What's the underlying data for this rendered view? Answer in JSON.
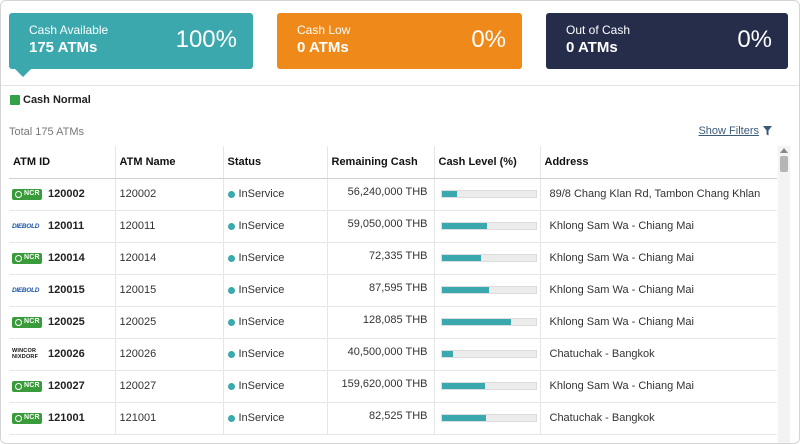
{
  "summary": {
    "available": {
      "label": "Cash Available",
      "count": "175 ATMs",
      "percent": "100%",
      "color": "#3aa8ad"
    },
    "low": {
      "label": "Cash Low",
      "count": "0 ATMs",
      "percent": "0%",
      "color": "#ef8a1a"
    },
    "out": {
      "label": "Out of Cash",
      "count": "0 ATMs",
      "percent": "0%",
      "color": "#252d4a"
    }
  },
  "legend": {
    "label": "Cash Normal",
    "color": "#35a04a"
  },
  "total_label": "Total 175 ATMs",
  "show_filters": "Show Filters",
  "table": {
    "headers": [
      "ATM ID",
      "ATM Name",
      "Status",
      "Remaining Cash",
      "Cash Level (%)",
      "Address"
    ],
    "rows": [
      {
        "logo": "NCR",
        "id": "120002",
        "name": "120002",
        "status": "InService",
        "cash": "56,240,000 THB",
        "level": 0.16,
        "address": "89/8 Chang Klan Rd, Tambon Chang Khlan"
      },
      {
        "logo": "DIEBOLD",
        "id": "120011",
        "name": "120011",
        "status": "InService",
        "cash": "59,050,000 THB",
        "level": 0.48,
        "address": "Khlong Sam Wa - Chiang Mai"
      },
      {
        "logo": "NCR",
        "id": "120014",
        "name": "120014",
        "status": "InService",
        "cash": "72,335 THB",
        "level": 0.42,
        "address": "Khlong Sam Wa - Chiang Mai"
      },
      {
        "logo": "DIEBOLD",
        "id": "120015",
        "name": "120015",
        "status": "InService",
        "cash": "87,595 THB",
        "level": 0.51,
        "address": "Khlong Sam Wa - Chiang Mai"
      },
      {
        "logo": "NCR",
        "id": "120025",
        "name": "120025",
        "status": "InService",
        "cash": "128,085 THB",
        "level": 0.74,
        "address": "Khlong Sam Wa - Chiang Mai"
      },
      {
        "logo": "WINCOR NIXDORF",
        "id": "120026",
        "name": "120026",
        "status": "InService",
        "cash": "40,500,000 THB",
        "level": 0.12,
        "address": "Chatuchak - Bangkok"
      },
      {
        "logo": "NCR",
        "id": "120027",
        "name": "120027",
        "status": "InService",
        "cash": "159,620,000 THB",
        "level": 0.46,
        "address": "Khlong Sam Wa - Chiang Mai"
      },
      {
        "logo": "NCR",
        "id": "121001",
        "name": "121001",
        "status": "InService",
        "cash": "82,525 THB",
        "level": 0.47,
        "address": "Chatuchak - Bangkok"
      }
    ]
  }
}
